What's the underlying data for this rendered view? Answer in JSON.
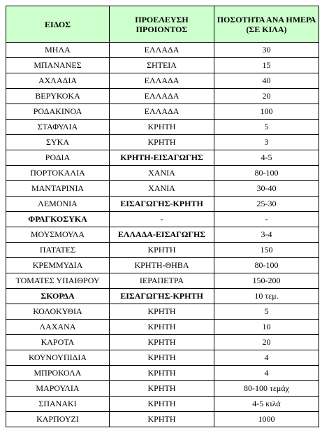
{
  "table": {
    "header": [
      "ΕΙΔΟΣ",
      "ΠΡΟΕΛΕΥΣΗ ΠΡΟΙΟΝΤΟΣ",
      "ΠΟΣΟΤΗΤΑ ΑΝΑ ΗΜΕΡΑ (ΣΕ ΚΙΛΑ)"
    ],
    "rows": [
      [
        "ΜΗΛΑ",
        "ΕΛΛΑΔΑ",
        "30"
      ],
      [
        "ΜΠΑΝΑΝΕΣ",
        "ΣΗΤΕΙΑ",
        "15"
      ],
      [
        "ΑΧΛΑΔΙΑ",
        "ΕΛΛΑΔΑ",
        "40"
      ],
      [
        "ΒΕΡΥΚΟΚΑ",
        "ΕΛΛΑΔΑ",
        "20"
      ],
      [
        "ΡΟΔΑΚΙΝΟΑ",
        "ΕΛΛΑΔΑ",
        "100"
      ],
      [
        "ΣΤΑΦΥΛΙΑ",
        "ΚΡΗΤΗ",
        "5"
      ],
      [
        "ΣΥΚΑ",
        "ΚΡΗΤΗ",
        "3"
      ],
      [
        "ΡΟΔΙΑ",
        "ΚΡΗΤΗ-ΕΙΣΑΓΩΓΗΣ",
        "4-5"
      ],
      [
        "ΠΟΡΤΟΚΑΛΙΑ",
        "ΧΑΝΙΑ",
        "80-100"
      ],
      [
        "ΜΑΝΤΑΡΙΝΙΑ",
        "ΧΑΝΙΑ",
        "30-40"
      ],
      [
        "ΛΕΜΟΝΙΑ",
        "ΕΙΣΑΓΩΓΗΣ-ΚΡΗΤΗ",
        "25-30"
      ],
      [
        "ΦΡΑΓΚΟΣΥΚΑ",
        "-",
        "-"
      ],
      [
        "ΜΟΥΣΜΟΥΛΑ",
        "ΕΛΛΑΔΑ-ΕΙΣΑΓΩΓΗΣ",
        "3-4"
      ],
      [
        "ΠΑΤΑΤΕΣ",
        "ΚΡΗΤΗ",
        "150"
      ],
      [
        "ΚΡΕΜΜΥΔΙΑ",
        "ΚΡΗΤΗ-ΘΗΒΑ",
        "80-100"
      ],
      [
        "ΤΟΜΑΤΕΣ ΥΠΑΙΘΡΟΥ",
        "ΙΕΡΑΠΕΤΡΑ",
        "150-200"
      ],
      [
        "ΣΚΟΡΔΑ",
        "ΕΙΣΑΓΩΓΗΣ-ΚΡΗΤΗ",
        "10 τεμ."
      ],
      [
        "ΚΟΛΟΚΥΘΙΑ",
        "ΚΡΗΤΗ",
        "5"
      ],
      [
        "ΛΑΧΑΝΑ",
        "ΚΡΗΤΗ",
        "10"
      ],
      [
        "ΚΑΡΟΤΑ",
        "ΚΡΗΤΗ",
        "20"
      ],
      [
        "ΚΟΥΝΟΥΠΙΔΙΑ",
        "ΚΡΗΤΗ",
        "4"
      ],
      [
        "ΜΠΡΟΚΟΛΑ",
        "ΚΡΗΤΗ",
        "4"
      ],
      [
        "ΜΑΡΟΥΛΙΑ",
        "ΚΡΗΤΗ",
        "80-100 τεμάχ"
      ],
      [
        "ΣΠΑΝΑΚΙ",
        "ΚΡΗΤΗ",
        "4-5 κιλά"
      ],
      [
        "ΚΑΡΠΟΥΖΙ",
        "ΚΡΗΤΗ",
        "1000"
      ]
    ]
  }
}
